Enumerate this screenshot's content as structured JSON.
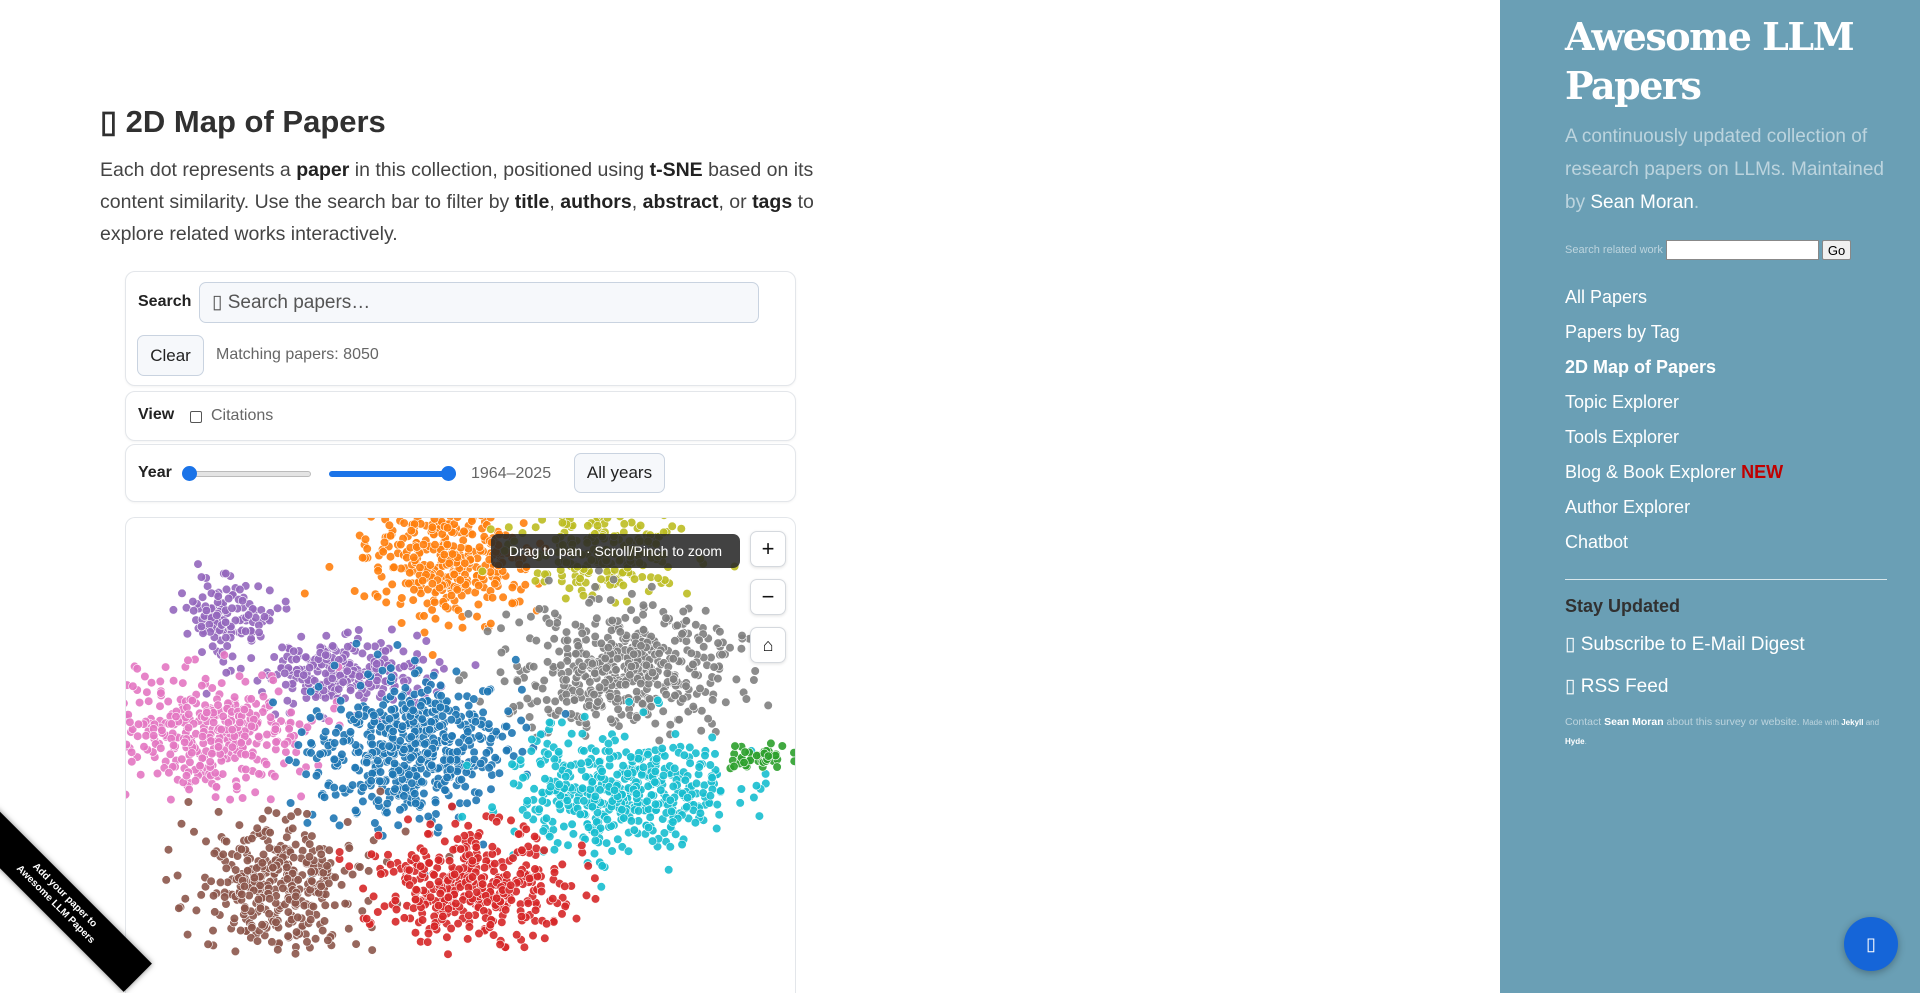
{
  "main": {
    "heading_icon": "map-icon",
    "heading": "▯ 2D Map of Papers",
    "intro": {
      "t1": "Each dot represents a ",
      "b1": "paper",
      "t2": " in this collection, positioned using ",
      "b2": "t-SNE",
      "t3": " based on its content similarity. Use the search bar to filter by ",
      "b3": "title",
      "t4": ", ",
      "b4": "authors",
      "t5": ", ",
      "b5": "abstract",
      "t6": ", or ",
      "b6": "tags",
      "t7": " to explore related works interactively."
    },
    "search": {
      "label": "Search",
      "placeholder": "▯ Search papers…",
      "clear": "Clear",
      "matching": "Matching papers: 8050"
    },
    "view": {
      "label": "View",
      "citations": "Citations",
      "citations_checked": false
    },
    "year": {
      "label": "Year",
      "min": 1964,
      "max": 2025,
      "range_text": "1964–2025",
      "all_years": "All years"
    },
    "map": {
      "tooltip": "Drag to pan · Scroll/Pinch to zoom",
      "zoom_in": "+",
      "zoom_out": "−",
      "home": "⌂",
      "cluster_colors": [
        "#1f77b4",
        "#ff7f0e",
        "#2ca02c",
        "#d62728",
        "#9467bd",
        "#8c564b",
        "#e377c2",
        "#7f7f7f",
        "#bcbd22",
        "#17becf"
      ]
    }
  },
  "ribbon": {
    "line1": "Add your paper to",
    "line2": "Awesome LLM Papers"
  },
  "sidebar": {
    "title": "Awesome LLM Papers",
    "desc1": "A continuously updated collection of research papers on LLMs. Maintained by ",
    "desc_link": "Sean Moran",
    "desc2": ".",
    "search_label": "Search related work",
    "go": "Go",
    "nav": [
      "All Papers",
      "Papers by Tag",
      "2D Map of Papers",
      "Topic Explorer",
      "Tools Explorer",
      "Blog & Book Explorer",
      "Author Explorer",
      "Chatbot"
    ],
    "new_badge": "NEW",
    "stay_updated": "Stay Updated",
    "subscribe": "▯ Subscribe to E-Mail Digest",
    "rss": "▯ RSS Feed",
    "contact": {
      "t1": "Contact ",
      "link": "Sean Moran",
      "t2": " about this survey or website. ",
      "made": "Made with ",
      "jekyll": "Jekyll",
      "and": " and ",
      "hyde": "Hyde",
      "end": "."
    },
    "chat_icon": "▯"
  }
}
